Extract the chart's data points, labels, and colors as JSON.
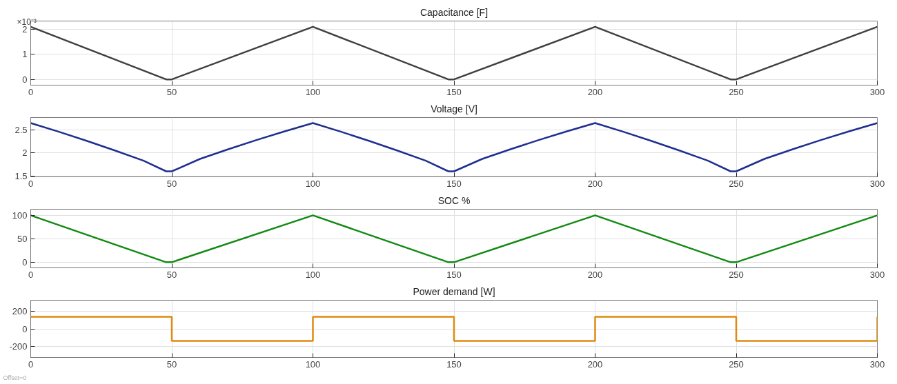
{
  "chart_data": [
    {
      "type": "line",
      "title": "Capacitance [F]",
      "x": [
        0,
        48,
        50,
        100,
        148,
        150,
        200,
        248,
        250,
        300
      ],
      "series": [
        {
          "color": "#404040",
          "values": [
            2.1,
            0,
            0,
            2.1,
            0,
            0,
            2.1,
            0,
            0,
            2.1
          ]
        }
      ],
      "xlim": [
        0,
        300
      ],
      "xticks": [
        0,
        50,
        100,
        150,
        200,
        250,
        300
      ],
      "ylim": [
        -0.23,
        2.33
      ],
      "yticks": [
        0,
        1,
        2
      ],
      "annotations": [
        "×10⁻³"
      ],
      "grid": true
    },
    {
      "type": "line",
      "title": "Voltage [V]",
      "x": [
        0,
        10,
        20,
        30,
        40,
        48,
        50,
        60,
        70,
        80,
        90,
        100,
        110,
        120,
        130,
        140,
        148,
        150,
        160,
        170,
        180,
        190,
        200,
        210,
        220,
        230,
        240,
        248,
        250,
        260,
        270,
        280,
        290,
        300
      ],
      "series": [
        {
          "color": "#1f2f8f",
          "values": [
            2.65,
            2.46,
            2.26,
            2.05,
            1.83,
            1.6,
            1.6,
            1.87,
            2.08,
            2.28,
            2.47,
            2.65,
            2.46,
            2.26,
            2.05,
            1.83,
            1.6,
            1.6,
            1.87,
            2.08,
            2.28,
            2.47,
            2.65,
            2.46,
            2.26,
            2.05,
            1.83,
            1.6,
            1.6,
            1.87,
            2.08,
            2.28,
            2.47,
            2.65
          ]
        }
      ],
      "xlim": [
        0,
        300
      ],
      "xticks": [
        0,
        50,
        100,
        150,
        200,
        250,
        300
      ],
      "ylim": [
        1.48,
        2.77
      ],
      "yticks": [
        1.5,
        2,
        2.5
      ],
      "grid": true
    },
    {
      "type": "line",
      "title": "SOC %",
      "x": [
        0,
        48,
        50,
        100,
        148,
        150,
        200,
        248,
        250,
        300
      ],
      "series": [
        {
          "color": "#138a13",
          "values": [
            100,
            0,
            0,
            100,
            0,
            0,
            100,
            0,
            0,
            100
          ]
        }
      ],
      "xlim": [
        0,
        300
      ],
      "xticks": [
        0,
        50,
        100,
        150,
        200,
        250,
        300
      ],
      "ylim": [
        -12,
        113
      ],
      "yticks": [
        0,
        50,
        100
      ],
      "grid": true
    },
    {
      "type": "step",
      "title": "Power demand [W]",
      "x": [
        0,
        50,
        100,
        150,
        200,
        250,
        300
      ],
      "series": [
        {
          "color": "#e08a10",
          "values": [
            140,
            -140,
            140,
            -140,
            140,
            -140,
            140
          ]
        }
      ],
      "xlim": [
        0,
        300
      ],
      "xticks": [
        0,
        50,
        100,
        150,
        200,
        250,
        300
      ],
      "ylim": [
        -330,
        330
      ],
      "yticks": [
        -200,
        0,
        200
      ],
      "annotations": [
        "Offset=0"
      ],
      "grid": true
    }
  ]
}
